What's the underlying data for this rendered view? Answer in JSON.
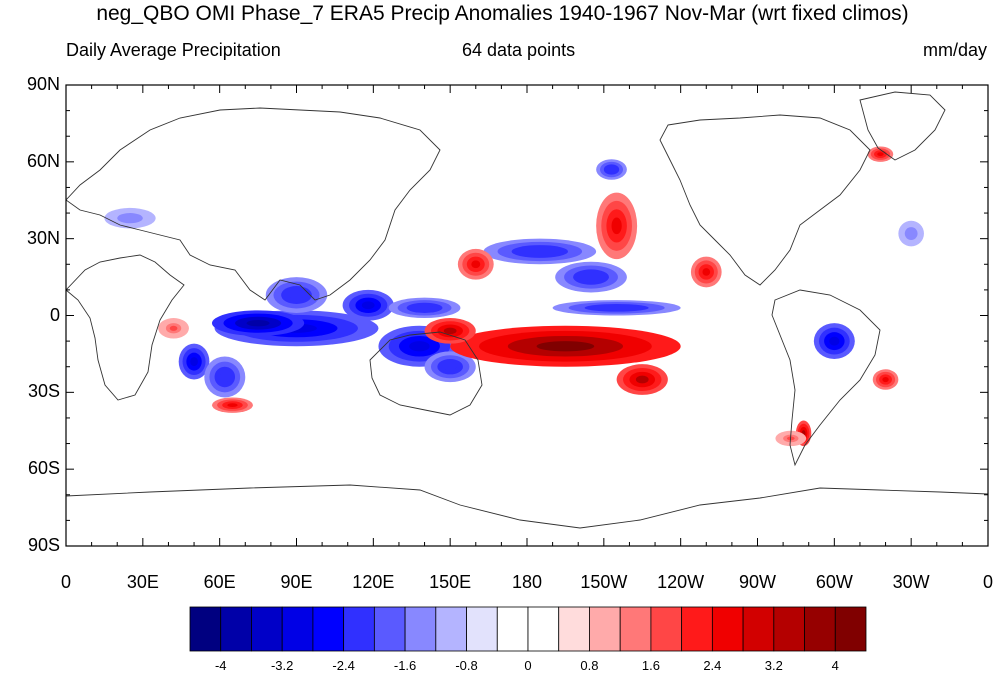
{
  "title": "neg_QBO OMI Phase_7 ERA5 Precip Anomalies 1940-1967 Nov-Mar (wrt fixed climos)",
  "subtitle_left": "Daily Average Precipitation",
  "subtitle_center": "64 data points",
  "subtitle_right": "mm/day",
  "y_axis_labels": [
    "90N",
    "60N",
    "30N",
    "0",
    "30S",
    "60S",
    "90S"
  ],
  "x_axis_labels": [
    "0",
    "30E",
    "60E",
    "90E",
    "120E",
    "150E",
    "180",
    "150W",
    "120W",
    "90W",
    "60W",
    "30W",
    "0"
  ],
  "colorbar": {
    "labels": [
      "-4",
      "-3.2",
      "-2.4",
      "-1.6",
      "-0.8",
      "0",
      "0.8",
      "1.6",
      "2.4",
      "3.2",
      "4"
    ],
    "colors": [
      "#000080",
      "#0000a8",
      "#0000c8",
      "#0000e6",
      "#0000ff",
      "#3030ff",
      "#5a5aff",
      "#8888ff",
      "#b4b4ff",
      "#e2e2fc",
      "#ffffff",
      "#ffffff",
      "#ffdcdc",
      "#ffaaaa",
      "#ff7878",
      "#ff4646",
      "#ff1a1a",
      "#f00000",
      "#d20000",
      "#b40000",
      "#960000",
      "#800000"
    ]
  },
  "map": {
    "lon_range": [
      0,
      360
    ],
    "lat_range": [
      -90,
      90
    ],
    "anomaly_features": [
      {
        "name": "maritime-continent-dry",
        "lon": 90,
        "lat": -5,
        "rx": 32,
        "ry": 7,
        "value": -3.2
      },
      {
        "name": "indian-ocean-dry",
        "lon": 75,
        "lat": -3,
        "rx": 18,
        "ry": 5,
        "value": -4
      },
      {
        "name": "bay-of-bengal-dry",
        "lon": 90,
        "lat": 8,
        "rx": 12,
        "ry": 7,
        "value": -2.4
      },
      {
        "name": "south-china-sea-dry",
        "lon": 118,
        "lat": 4,
        "rx": 10,
        "ry": 6,
        "value": -3.2
      },
      {
        "name": "west-pacific-dry",
        "lon": 140,
        "lat": 3,
        "rx": 14,
        "ry": 4,
        "value": -2.4
      },
      {
        "name": "north-australia-dry",
        "lon": 138,
        "lat": -12,
        "rx": 16,
        "ry": 8,
        "value": -3.2
      },
      {
        "name": "coral-sea-dry",
        "lon": 150,
        "lat": -20,
        "rx": 10,
        "ry": 6,
        "value": -2.4
      },
      {
        "name": "madagascar-dry",
        "lon": 50,
        "lat": -18,
        "rx": 6,
        "ry": 7,
        "value": -3.2
      },
      {
        "name": "south-indian-dry",
        "lon": 62,
        "lat": -24,
        "rx": 8,
        "ry": 8,
        "value": -2.4
      },
      {
        "name": "north-pacific-dry",
        "lon": 185,
        "lat": 25,
        "rx": 22,
        "ry": 5,
        "value": -2.4
      },
      {
        "name": "central-pacific-dry",
        "lon": 205,
        "lat": 15,
        "rx": 14,
        "ry": 6,
        "value": -2.4
      },
      {
        "name": "equatorial-east-dry",
        "lon": 215,
        "lat": 3,
        "rx": 25,
        "ry": 3,
        "value": -2.4
      },
      {
        "name": "amazon-dry",
        "lon": 300,
        "lat": -10,
        "rx": 8,
        "ry": 7,
        "value": -3.2
      },
      {
        "name": "mediterranean-dry",
        "lon": 25,
        "lat": 38,
        "rx": 10,
        "ry": 4,
        "value": -1.6
      },
      {
        "name": "north-atlantic-dry",
        "lon": 330,
        "lat": 32,
        "rx": 5,
        "ry": 5,
        "value": -1.6
      },
      {
        "name": "alaska-dry",
        "lon": 213,
        "lat": 57,
        "rx": 6,
        "ry": 4,
        "value": -2.4
      },
      {
        "name": "spcz-wet",
        "lon": 195,
        "lat": -12,
        "rx": 45,
        "ry": 8,
        "value": 4
      },
      {
        "name": "south-pacific-wet",
        "lon": 225,
        "lat": -25,
        "rx": 10,
        "ry": 6,
        "value": 3.2
      },
      {
        "name": "new-guinea-wet",
        "lon": 150,
        "lat": -6,
        "rx": 10,
        "ry": 5,
        "value": 3.2
      },
      {
        "name": "subtropical-pacific-wet",
        "lon": 160,
        "lat": 20,
        "rx": 7,
        "ry": 6,
        "value": 2.4
      },
      {
        "name": "north-pacific-wet",
        "lon": 215,
        "lat": 35,
        "rx": 8,
        "ry": 13,
        "value": 2.4
      },
      {
        "name": "east-pacific-wet",
        "lon": 250,
        "lat": 17,
        "rx": 6,
        "ry": 6,
        "value": 2.4
      },
      {
        "name": "africa-wet",
        "lon": 42,
        "lat": -5,
        "rx": 6,
        "ry": 4,
        "value": 1.6
      },
      {
        "name": "south-indian-wet",
        "lon": 65,
        "lat": -35,
        "rx": 8,
        "ry": 3,
        "value": 2.4
      },
      {
        "name": "chile-wet",
        "lon": 288,
        "lat": -46,
        "rx": 3,
        "ry": 5,
        "value": 3.2
      },
      {
        "name": "south-atlantic-wet",
        "lon": 320,
        "lat": -25,
        "rx": 5,
        "ry": 4,
        "value": 2.4
      },
      {
        "name": "greenland-wet",
        "lon": 318,
        "lat": 63,
        "rx": 5,
        "ry": 3,
        "value": 2.4
      },
      {
        "name": "patagonia-wet",
        "lon": 283,
        "lat": -48,
        "rx": 6,
        "ry": 3,
        "value": 1.6
      }
    ]
  }
}
